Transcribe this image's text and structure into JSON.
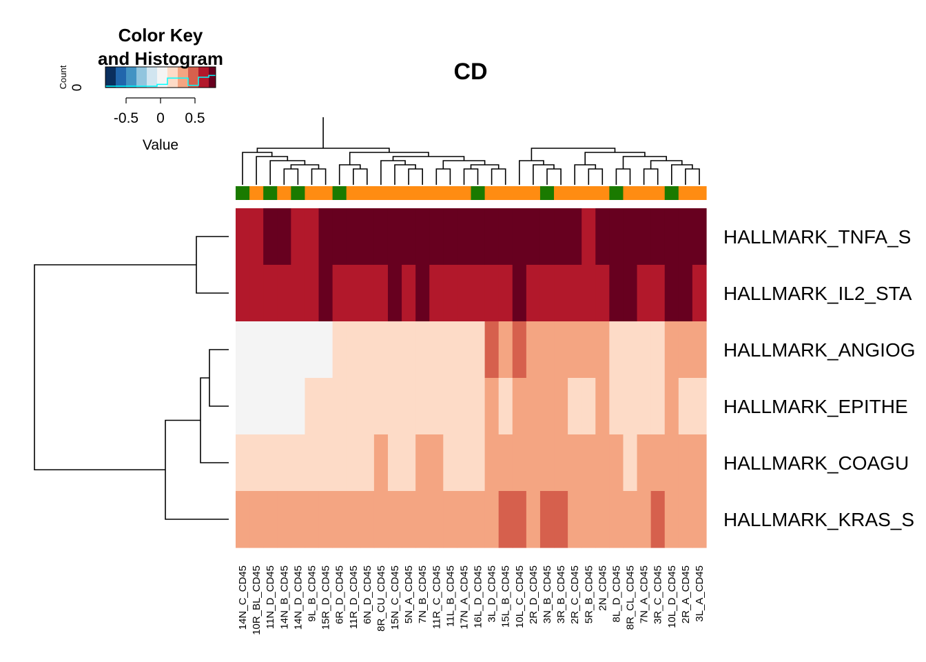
{
  "chart_data": {
    "type": "heatmap",
    "title": "CD",
    "rows": [
      "HALLMARK_TNFA_S",
      "HALLMARK_IL2_STA",
      "HALLMARK_ANGIOG",
      "HALLMARK_EPITHE",
      "HALLMARK_COAGU",
      "HALLMARK_KRAS_S"
    ],
    "columns": [
      "14N_C_CD45",
      "10R_BL_CD45",
      "11N_D_CD45",
      "14N_B_CD45",
      "14N_D_CD45",
      "9L_B_CD45",
      "15R_D_CD45",
      "6R_D_CD45",
      "11R_D_CD45",
      "6N_D_CD45",
      "8R_CU_CD45",
      "15N_C_CD45",
      "5N_A_CD45",
      "7N_B_CD45",
      "11R_C_CD45",
      "11L_B_CD45",
      "17N_A_CD45",
      "16L_D_CD45",
      "3L_D_CD45",
      "15L_B_CD45",
      "10L_C_CD45",
      "2R_D_CD45",
      "3N_B_CD45",
      "3R_B_CD45",
      "2R_C_CD45",
      "5R_B_CD45",
      "2N_CD45",
      "8L_D_CD45",
      "8R_CL_CD45",
      "7N_A_CD45",
      "3R_C_CD45",
      "10L_D_CD45",
      "2R_A_CD45",
      "3L_A_CD45"
    ],
    "column_groups": [
      "green",
      "orange",
      "green",
      "orange",
      "green",
      "orange",
      "orange",
      "green",
      "orange",
      "orange",
      "orange",
      "orange",
      "orange",
      "orange",
      "orange",
      "orange",
      "orange",
      "green",
      "orange",
      "orange",
      "orange",
      "orange",
      "green",
      "orange",
      "orange",
      "orange",
      "orange",
      "green",
      "orange",
      "orange",
      "orange",
      "green",
      "orange",
      "orange"
    ],
    "group_colors": {
      "green": "#1a7a00",
      "orange": "#ff8c12"
    },
    "values": [
      [
        0.6,
        0.6,
        0.8,
        0.8,
        0.6,
        0.6,
        0.8,
        0.8,
        0.8,
        0.8,
        0.8,
        0.8,
        0.8,
        0.8,
        0.8,
        0.8,
        0.8,
        0.8,
        0.8,
        0.8,
        0.8,
        0.8,
        0.8,
        0.8,
        0.8,
        0.6,
        0.8,
        0.8,
        0.8,
        0.8,
        0.8,
        0.8,
        0.8,
        0.8
      ],
      [
        0.6,
        0.6,
        0.6,
        0.6,
        0.6,
        0.6,
        0.8,
        0.6,
        0.6,
        0.6,
        0.6,
        0.8,
        0.6,
        0.8,
        0.6,
        0.6,
        0.6,
        0.6,
        0.6,
        0.6,
        0.8,
        0.6,
        0.6,
        0.6,
        0.6,
        0.6,
        0.6,
        0.8,
        0.8,
        0.6,
        0.6,
        0.8,
        0.8,
        0.6
      ],
      [
        0.0,
        0.0,
        0.0,
        0.0,
        0.0,
        0.0,
        0.0,
        0.2,
        0.2,
        0.2,
        0.2,
        0.2,
        0.2,
        0.2,
        0.2,
        0.2,
        0.2,
        0.2,
        0.45,
        0.3,
        0.45,
        0.3,
        0.3,
        0.3,
        0.3,
        0.3,
        0.3,
        0.2,
        0.2,
        0.2,
        0.2,
        0.3,
        0.3,
        0.3
      ],
      [
        0.0,
        0.0,
        0.0,
        0.0,
        0.0,
        0.2,
        0.2,
        0.2,
        0.2,
        0.2,
        0.2,
        0.2,
        0.2,
        0.2,
        0.2,
        0.2,
        0.2,
        0.2,
        0.3,
        0.2,
        0.3,
        0.3,
        0.3,
        0.3,
        0.2,
        0.2,
        0.3,
        0.2,
        0.2,
        0.2,
        0.2,
        0.3,
        0.2,
        0.2
      ],
      [
        0.2,
        0.2,
        0.2,
        0.2,
        0.2,
        0.2,
        0.2,
        0.2,
        0.2,
        0.2,
        0.3,
        0.2,
        0.2,
        0.3,
        0.3,
        0.2,
        0.2,
        0.2,
        0.3,
        0.3,
        0.3,
        0.3,
        0.3,
        0.3,
        0.3,
        0.3,
        0.3,
        0.3,
        0.2,
        0.3,
        0.3,
        0.3,
        0.3,
        0.3
      ],
      [
        0.3,
        0.3,
        0.3,
        0.3,
        0.3,
        0.3,
        0.3,
        0.3,
        0.3,
        0.3,
        0.3,
        0.3,
        0.3,
        0.3,
        0.3,
        0.3,
        0.3,
        0.3,
        0.3,
        0.45,
        0.45,
        0.3,
        0.45,
        0.45,
        0.3,
        0.3,
        0.3,
        0.3,
        0.3,
        0.3,
        0.45,
        0.3,
        0.3,
        0.3
      ]
    ],
    "color_scale": {
      "breaks": [
        -0.8,
        -0.65,
        -0.5,
        -0.35,
        -0.2,
        -0.05,
        0.1,
        0.25,
        0.4,
        0.55,
        0.7,
        0.8
      ],
      "colors": [
        "#0a2f5e",
        "#2166ac",
        "#4393c3",
        "#92c5de",
        "#d1e5f0",
        "#f4f4f4",
        "#fddbc7",
        "#f4a582",
        "#d6604d",
        "#b2182b",
        "#67001f"
      ]
    },
    "color_key": {
      "title_line1": "Color Key",
      "title_line2": "and Histogram",
      "xlabel": "Value",
      "ylabel": "Count",
      "ytick": "0",
      "ticks": [
        "-0.5",
        "0",
        "0.5"
      ],
      "tick_values": [
        -0.5,
        0,
        0.5
      ],
      "histogram_line_color": "#00ffff"
    }
  }
}
